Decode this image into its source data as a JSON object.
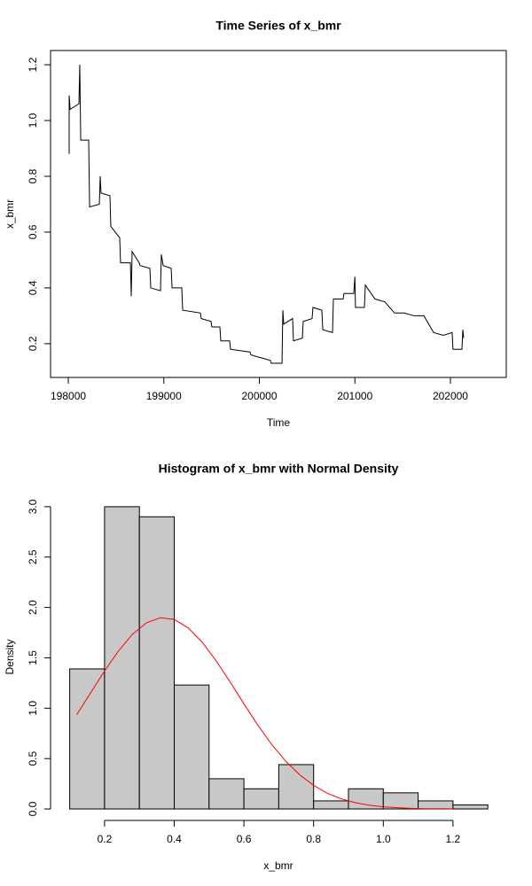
{
  "chart_data": [
    {
      "type": "line",
      "title": "Time Series of x_bmr",
      "xlabel": "Time",
      "ylabel": "x_bmr",
      "x": [
        198009,
        198009,
        198019,
        198111,
        198120,
        198130,
        198213,
        198223,
        198325,
        198334,
        198343,
        198436,
        198445,
        198538,
        198547,
        198650,
        198659,
        198668,
        198742,
        198751,
        198854,
        198863,
        198965,
        198974,
        198993,
        199077,
        199086,
        199188,
        199197,
        199383,
        199392,
        199494,
        199503,
        199587,
        199596,
        199689,
        199698,
        199903,
        199912,
        200005,
        200014,
        200116,
        200125,
        200237,
        200246,
        200255,
        200348,
        200357,
        200450,
        200459,
        200552,
        200561,
        200654,
        200664,
        200766,
        200775,
        200877,
        200886,
        200988,
        201000,
        201006,
        201100,
        201109,
        201211,
        201313,
        201415,
        201517,
        201619,
        201722,
        201824,
        201926,
        202018,
        202027,
        202121,
        202130,
        202139
      ],
      "values": [
        0.88,
        1.09,
        1.04,
        1.06,
        1.2,
        0.93,
        0.93,
        0.69,
        0.7,
        0.8,
        0.74,
        0.73,
        0.62,
        0.58,
        0.49,
        0.49,
        0.37,
        0.53,
        0.49,
        0.48,
        0.47,
        0.4,
        0.39,
        0.52,
        0.48,
        0.47,
        0.4,
        0.4,
        0.32,
        0.31,
        0.29,
        0.28,
        0.26,
        0.26,
        0.21,
        0.21,
        0.18,
        0.17,
        0.16,
        0.15,
        0.15,
        0.14,
        0.13,
        0.13,
        0.32,
        0.27,
        0.29,
        0.21,
        0.22,
        0.28,
        0.29,
        0.33,
        0.32,
        0.25,
        0.24,
        0.36,
        0.36,
        0.38,
        0.38,
        0.44,
        0.33,
        0.33,
        0.41,
        0.36,
        0.35,
        0.31,
        0.31,
        0.3,
        0.3,
        0.24,
        0.23,
        0.24,
        0.18,
        0.18,
        0.25,
        0.22
      ],
      "color": "#000000",
      "frame": true,
      "xlim": [
        197814,
        202585
      ],
      "xticks": [
        198000,
        199000,
        200000,
        201000,
        202000
      ],
      "ylim": [
        0.079,
        1.251
      ],
      "yticks": [
        0.2,
        0.4,
        0.6,
        0.8,
        {
          "value": 1,
          "label": "1.0"
        },
        1.2
      ]
    },
    {
      "type": "histogram",
      "title": "Histogram of x_bmr with Normal Density",
      "xlabel": "x_bmr",
      "ylabel": "Density",
      "bins": [
        0.1,
        0.2,
        0.3,
        0.4,
        0.5,
        0.6,
        0.7,
        0.8,
        0.9,
        1.0,
        1.1,
        1.2,
        1.3
      ],
      "values": [
        1.39,
        3.0,
        2.9,
        1.23,
        0.3,
        0.2,
        0.44,
        0.08,
        0.2,
        0.16,
        0.08,
        0.04
      ],
      "color": "#c8c8c8",
      "frame": false,
      "density_x": [
        0.12,
        0.16,
        0.2,
        0.24,
        0.28,
        0.32,
        0.36,
        0.4,
        0.44,
        0.48,
        0.52,
        0.56,
        0.6,
        0.64,
        0.68,
        0.72,
        0.76,
        0.8,
        0.84,
        0.88,
        0.92,
        0.96,
        1.0,
        1.04,
        1.08,
        1.12,
        1.16,
        1.2
      ],
      "density_values": [
        0.935,
        1.152,
        1.369,
        1.569,
        1.733,
        1.847,
        1.898,
        1.881,
        1.797,
        1.656,
        1.472,
        1.262,
        1.043,
        0.831,
        0.639,
        0.474,
        0.339,
        0.234,
        0.155,
        0.1,
        0.062,
        0.037,
        0.021,
        0.012,
        0.006,
        0.003,
        0.002,
        0.001
      ],
      "density_color": "#ff0000",
      "xlim": [
        0.045,
        1.353
      ],
      "xticks": [
        0.2,
        0.4,
        0.6,
        0.8,
        {
          "value": 1,
          "label": "1.0"
        },
        1.2
      ],
      "ylim": [
        -0.114,
        3.131
      ],
      "yticks": [
        {
          "value": 0,
          "label": "0.0"
        },
        0.5,
        {
          "value": 1,
          "label": "1.0"
        },
        1.5,
        {
          "value": 2,
          "label": "2.0"
        },
        2.5,
        {
          "value": 3,
          "label": "3.0"
        }
      ]
    }
  ]
}
